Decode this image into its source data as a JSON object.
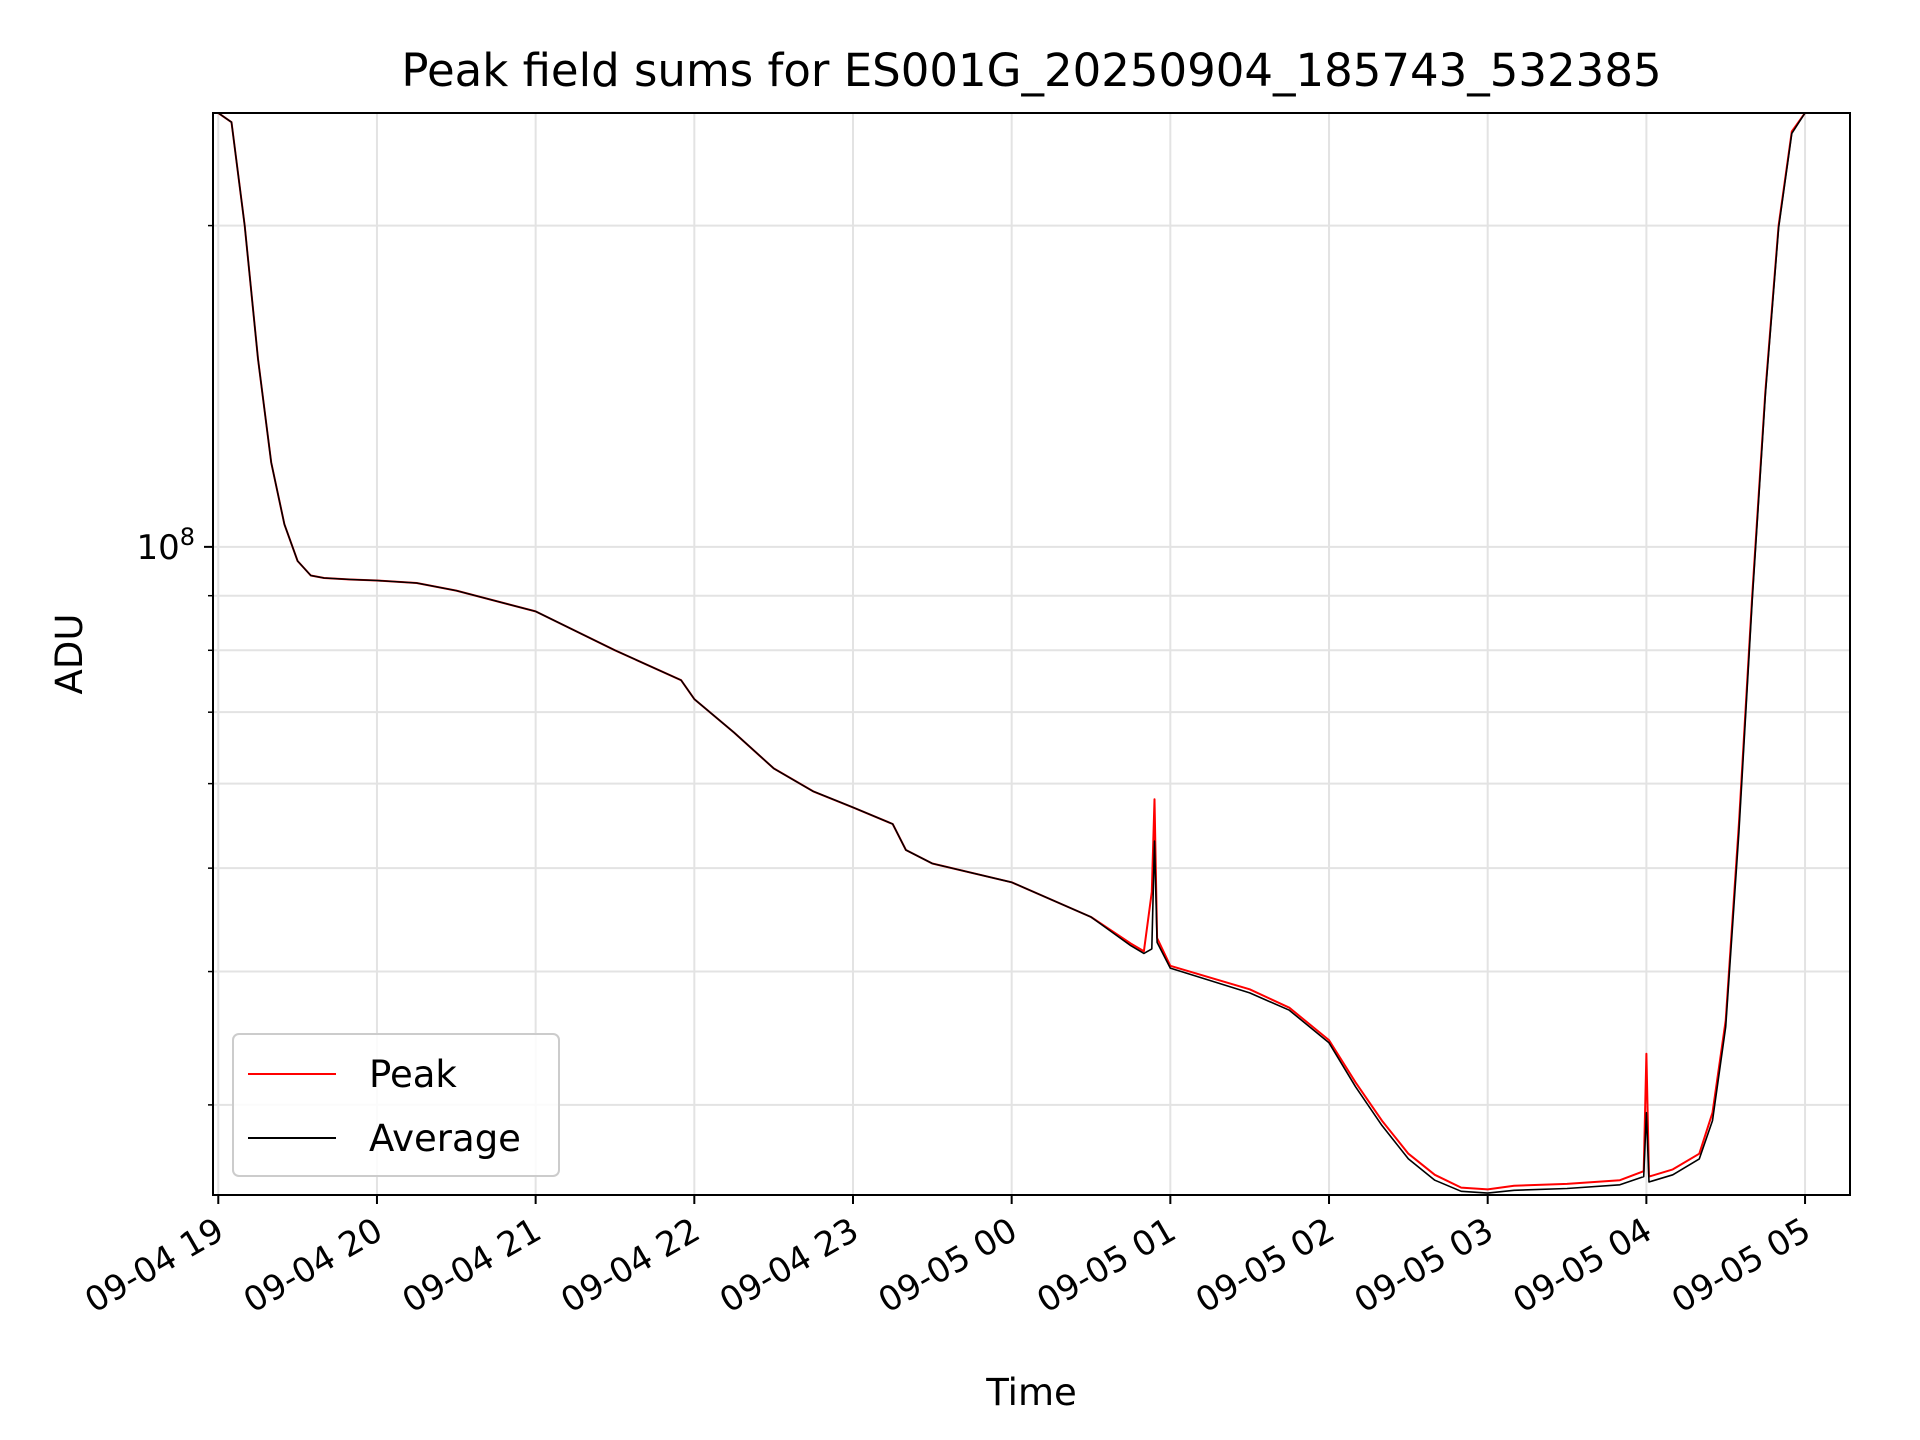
{
  "chart_data": {
    "type": "line",
    "title": "Peak field sums for ES001G_20250904_185743_532385",
    "xlabel": "Time",
    "ylabel": "ADU",
    "yscale": "log",
    "ylim": [
      24700000,
      255000000
    ],
    "xlim": [
      "2025-09-04 18:58",
      "2025-09-05 05:17"
    ],
    "grid": true,
    "legend_position": "lower-left",
    "x_ticks": [
      "09-04 19",
      "09-04 20",
      "09-04 21",
      "09-04 22",
      "09-04 23",
      "09-05 00",
      "09-05 01",
      "09-05 02",
      "09-05 03",
      "09-05 04",
      "09-05 05"
    ],
    "y_ticks": [
      {
        "label": "10",
        "exp": "8",
        "value": 100000000
      }
    ],
    "y_minor_ticks": [
      30000000,
      40000000,
      50000000,
      60000000,
      70000000,
      80000000,
      90000000,
      200000000
    ],
    "x": [
      "2025-09-04 19:00",
      "2025-09-04 19:05",
      "2025-09-04 19:10",
      "2025-09-04 19:15",
      "2025-09-04 19:20",
      "2025-09-04 19:25",
      "2025-09-04 19:30",
      "2025-09-04 19:35",
      "2025-09-04 19:40",
      "2025-09-04 19:50",
      "2025-09-04 20:00",
      "2025-09-04 20:15",
      "2025-09-04 20:30",
      "2025-09-04 21:00",
      "2025-09-04 21:30",
      "2025-09-04 21:55",
      "2025-09-04 22:00",
      "2025-09-04 22:15",
      "2025-09-04 22:30",
      "2025-09-04 22:45",
      "2025-09-04 23:00",
      "2025-09-04 23:15",
      "2025-09-04 23:20",
      "2025-09-04 23:30",
      "2025-09-05 00:00",
      "2025-09-05 00:30",
      "2025-09-05 00:45",
      "2025-09-05 00:50",
      "2025-09-05 00:53",
      "2025-09-05 00:54",
      "2025-09-05 00:55",
      "2025-09-05 01:00",
      "2025-09-05 01:30",
      "2025-09-05 01:45",
      "2025-09-05 02:00",
      "2025-09-05 02:10",
      "2025-09-05 02:20",
      "2025-09-05 02:30",
      "2025-09-05 02:40",
      "2025-09-05 02:50",
      "2025-09-05 03:00",
      "2025-09-05 03:10",
      "2025-09-05 03:30",
      "2025-09-05 03:50",
      "2025-09-05 03:59",
      "2025-09-05 04:00",
      "2025-09-05 04:01",
      "2025-09-05 04:10",
      "2025-09-05 04:20",
      "2025-09-05 04:25",
      "2025-09-05 04:30",
      "2025-09-05 04:35",
      "2025-09-05 04:40",
      "2025-09-05 04:45",
      "2025-09-05 04:50",
      "2025-09-05 04:55",
      "2025-09-05 05:00",
      "2025-09-05 05:05"
    ],
    "series": [
      {
        "name": "Peak",
        "color": "#ff0000",
        "values": [
          255000000,
          250000000,
          200000000,
          150000000,
          120000000,
          105000000,
          97000000,
          94000000,
          93500000,
          93200000,
          93000000,
          92500000,
          91000000,
          87000000,
          80000000,
          75000000,
          72000000,
          67000000,
          62000000,
          59000000,
          57000000,
          55000000,
          52000000,
          50500000,
          48500000,
          45000000,
          42500000,
          41800000,
          47500000,
          58000000,
          43000000,
          40500000,
          38500000,
          37000000,
          34500000,
          31500000,
          29000000,
          27000000,
          25800000,
          25100000,
          25000000,
          25200000,
          25300000,
          25500000,
          26000000,
          33500000,
          25700000,
          26100000,
          27000000,
          29500000,
          36000000,
          55000000,
          90000000,
          140000000,
          200000000,
          245000000,
          255000000,
          255000000
        ]
      },
      {
        "name": "Average",
        "color": "#000000",
        "values": [
          255000000,
          250000000,
          200000000,
          150000000,
          120000000,
          105000000,
          97000000,
          94000000,
          93500000,
          93200000,
          93000000,
          92500000,
          91000000,
          87000000,
          80000000,
          75000000,
          72000000,
          67000000,
          62000000,
          59000000,
          57000000,
          55000000,
          52000000,
          50500000,
          48500000,
          45000000,
          42300000,
          41600000,
          42000000,
          53000000,
          42600000,
          40300000,
          38200000,
          36800000,
          34300000,
          31200000,
          28700000,
          26700000,
          25500000,
          24900000,
          24800000,
          24950000,
          25050000,
          25250000,
          25700000,
          29500000,
          25400000,
          25800000,
          26700000,
          29000000,
          35500000,
          54000000,
          89000000,
          139000000,
          199000000,
          244000000,
          255000000,
          255000000
        ]
      }
    ]
  }
}
